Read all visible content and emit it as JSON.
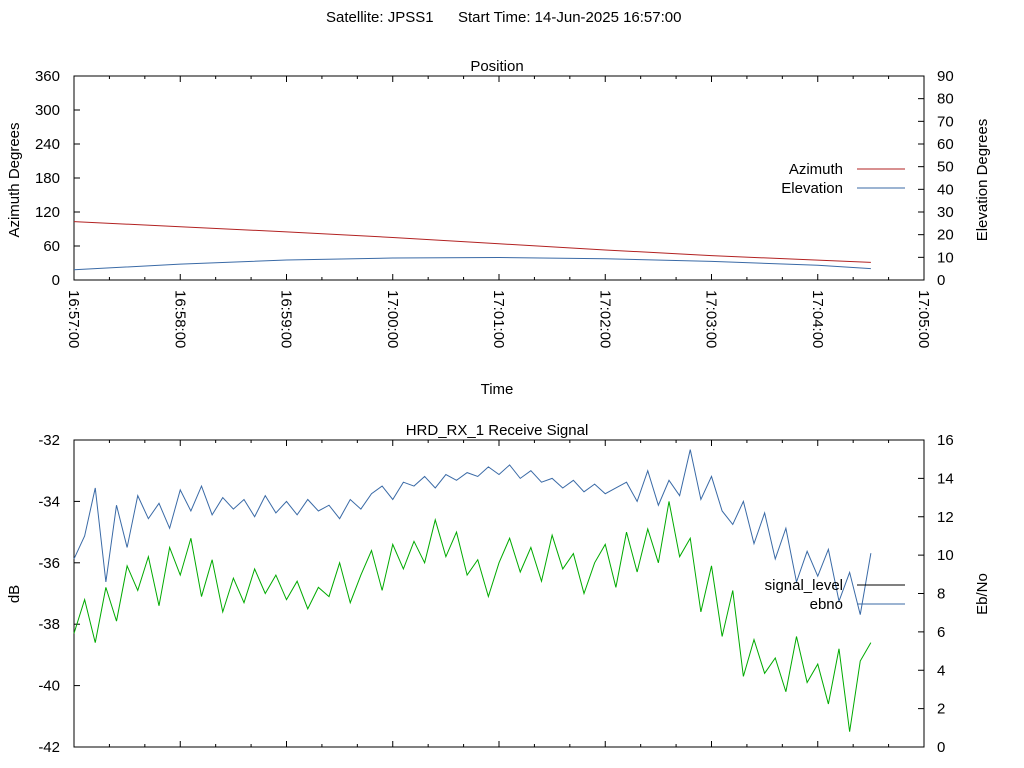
{
  "header": {
    "satellite_text": "Satellite: JPSS1",
    "start_time_text": "Start Time: 14-Jun-2025 16:57:00"
  },
  "chart_data": [
    {
      "type": "line",
      "title": "Position",
      "xlabel": "Time",
      "ylabel": "Azimuth Degrees",
      "y2label": "Elevation Degrees",
      "xlim": [
        "16:57:00",
        "17:05:00"
      ],
      "ylim": [
        0,
        360
      ],
      "y2lim": [
        0,
        90
      ],
      "x_tick_labels": [
        "16:57:00",
        "16:58:00",
        "16:59:00",
        "17:00:00",
        "17:01:00",
        "17:02:00",
        "17:03:00",
        "17:04:00",
        "17:05:00"
      ],
      "y_tick_labels": [
        "0",
        "60",
        "120",
        "180",
        "240",
        "300",
        "360"
      ],
      "y2_tick_labels": [
        "0",
        "10",
        "20",
        "30",
        "40",
        "50",
        "60",
        "70",
        "80",
        "90"
      ],
      "legend_position": "right",
      "series": [
        {
          "name": "Azimuth",
          "axis": "left",
          "color": "#b22222",
          "x": [
            "16:57:00",
            "16:58:00",
            "16:59:00",
            "17:00:00",
            "17:01:00",
            "17:02:00",
            "17:03:00",
            "17:04:00",
            "17:04:30"
          ],
          "values": [
            103,
            94,
            85,
            75,
            64,
            53,
            43,
            35,
            31
          ]
        },
        {
          "name": "Elevation",
          "axis": "right",
          "color": "#3a6aa6",
          "x": [
            "16:57:00",
            "16:58:00",
            "16:59:00",
            "17:00:00",
            "17:01:00",
            "17:02:00",
            "17:03:00",
            "17:04:00",
            "17:04:30"
          ],
          "values": [
            4.5,
            7.0,
            8.8,
            9.7,
            9.9,
            9.4,
            8.2,
            6.5,
            5.0
          ]
        }
      ]
    },
    {
      "type": "line",
      "title": "HRD_RX_1 Receive Signal",
      "ylabel": "dB",
      "y2label": "Eb/No",
      "xlim": [
        "16:57:00",
        "17:05:00"
      ],
      "ylim": [
        -42,
        -32
      ],
      "y2lim": [
        0,
        16
      ],
      "y_tick_labels": [
        "-42",
        "-40",
        "-38",
        "-36",
        "-34",
        "-32"
      ],
      "y2_tick_labels": [
        "0",
        "2",
        "4",
        "6",
        "8",
        "10",
        "12",
        "14",
        "16"
      ],
      "legend_position": "right",
      "series": [
        {
          "name": "signal_level",
          "axis": "left",
          "color": "#00aa00",
          "legend_color": "#000000",
          "x_minutes": [
            0,
            0.1,
            0.2,
            0.3,
            0.4,
            0.5,
            0.6,
            0.7,
            0.8,
            0.9,
            1.0,
            1.1,
            1.2,
            1.3,
            1.4,
            1.5,
            1.6,
            1.7,
            1.8,
            1.9,
            2.0,
            2.1,
            2.2,
            2.3,
            2.4,
            2.5,
            2.6,
            2.7,
            2.8,
            2.9,
            3.0,
            3.1,
            3.2,
            3.3,
            3.4,
            3.5,
            3.6,
            3.7,
            3.8,
            3.9,
            4.0,
            4.1,
            4.2,
            4.3,
            4.4,
            4.5,
            4.6,
            4.7,
            4.8,
            4.9,
            5.0,
            5.1,
            5.2,
            5.3,
            5.4,
            5.5,
            5.6,
            5.7,
            5.8,
            5.9,
            6.0,
            6.1,
            6.2,
            6.3,
            6.4,
            6.5,
            6.6,
            6.7,
            6.8,
            6.9,
            7.0,
            7.1,
            7.2,
            7.3,
            7.4,
            7.5
          ],
          "values": [
            -38.3,
            -37.2,
            -38.6,
            -36.8,
            -37.9,
            -36.1,
            -36.9,
            -35.8,
            -37.4,
            -35.5,
            -36.4,
            -35.2,
            -37.1,
            -35.9,
            -37.6,
            -36.5,
            -37.3,
            -36.2,
            -37.0,
            -36.4,
            -37.2,
            -36.6,
            -37.5,
            -36.8,
            -37.1,
            -36.0,
            -37.3,
            -36.4,
            -35.6,
            -36.9,
            -35.4,
            -36.2,
            -35.3,
            -36.0,
            -34.6,
            -35.8,
            -35.0,
            -36.4,
            -35.9,
            -37.1,
            -36.0,
            -35.2,
            -36.3,
            -35.5,
            -36.6,
            -35.1,
            -36.2,
            -35.7,
            -37.0,
            -36.0,
            -35.4,
            -36.8,
            -35.0,
            -36.3,
            -34.9,
            -36.0,
            -34.0,
            -35.8,
            -35.2,
            -37.6,
            -36.1,
            -38.4,
            -36.9,
            -39.7,
            -38.5,
            -39.6,
            -39.1,
            -40.2,
            -38.4,
            -39.9,
            -39.3,
            -40.6,
            -38.8,
            -41.5,
            -39.2,
            -38.6
          ]
        },
        {
          "name": "ebno",
          "axis": "right",
          "color": "#3a6aa6",
          "x_minutes": [
            0,
            0.1,
            0.2,
            0.3,
            0.4,
            0.5,
            0.6,
            0.7,
            0.8,
            0.9,
            1.0,
            1.1,
            1.2,
            1.3,
            1.4,
            1.5,
            1.6,
            1.7,
            1.8,
            1.9,
            2.0,
            2.1,
            2.2,
            2.3,
            2.4,
            2.5,
            2.6,
            2.7,
            2.8,
            2.9,
            3.0,
            3.1,
            3.2,
            3.3,
            3.4,
            3.5,
            3.6,
            3.7,
            3.8,
            3.9,
            4.0,
            4.1,
            4.2,
            4.3,
            4.4,
            4.5,
            4.6,
            4.7,
            4.8,
            4.9,
            5.0,
            5.1,
            5.2,
            5.3,
            5.4,
            5.5,
            5.6,
            5.7,
            5.8,
            5.9,
            6.0,
            6.1,
            6.2,
            6.3,
            6.4,
            6.5,
            6.6,
            6.7,
            6.8,
            6.9,
            7.0,
            7.1,
            7.2,
            7.3,
            7.4,
            7.5
          ],
          "values": [
            9.8,
            11.0,
            13.5,
            8.6,
            12.6,
            10.4,
            13.1,
            11.9,
            12.7,
            11.4,
            13.4,
            12.3,
            13.6,
            12.1,
            13.0,
            12.4,
            12.9,
            12.0,
            13.1,
            12.2,
            12.8,
            12.1,
            12.9,
            12.3,
            12.6,
            11.9,
            12.9,
            12.4,
            13.2,
            13.6,
            12.9,
            13.8,
            13.6,
            14.1,
            13.5,
            14.2,
            13.9,
            14.3,
            14.1,
            14.6,
            14.2,
            14.7,
            14.0,
            14.4,
            13.8,
            14.0,
            13.5,
            13.9,
            13.3,
            13.7,
            13.2,
            13.5,
            13.8,
            12.8,
            14.4,
            12.6,
            13.9,
            13.1,
            15.5,
            12.9,
            14.1,
            12.3,
            11.6,
            12.8,
            10.6,
            12.2,
            9.8,
            11.4,
            8.6,
            10.2,
            8.9,
            10.3,
            7.6,
            9.1,
            6.9,
            10.1
          ]
        }
      ]
    }
  ]
}
